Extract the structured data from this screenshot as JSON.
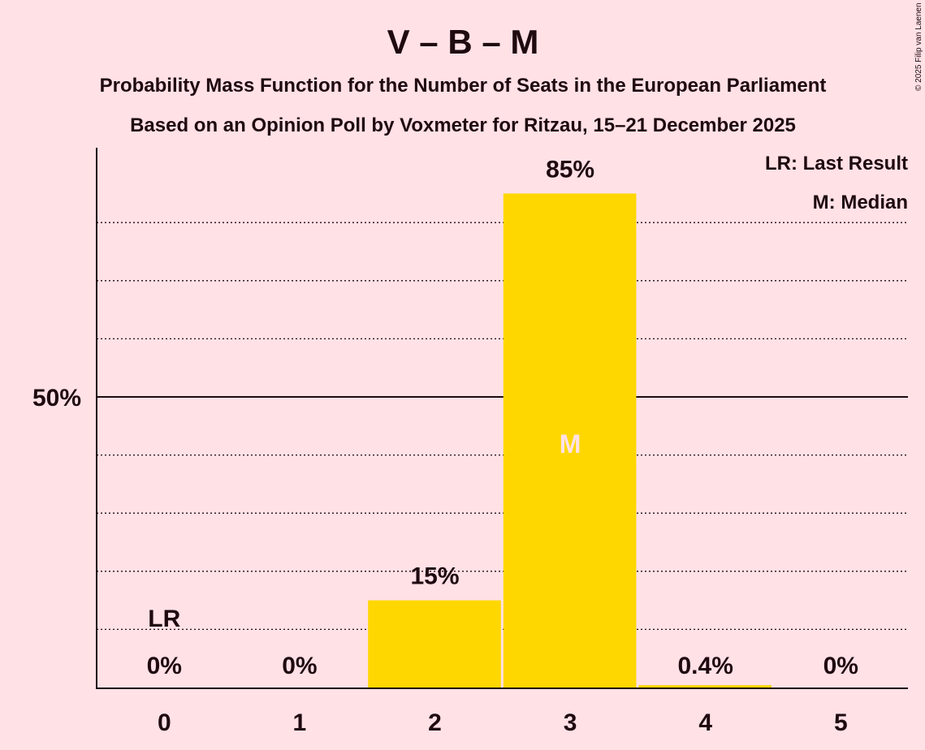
{
  "chart_data": {
    "type": "bar",
    "title": "V – B – M",
    "subtitle1": "Probability Mass Function for the Number of Seats in the European Parliament",
    "subtitle2": "Based on an Opinion Poll by Voxmeter for Ritzau, 15–21 December 2025",
    "copyright": "© 2025 Filip van Laenen",
    "categories": [
      "0",
      "1",
      "2",
      "3",
      "4",
      "5"
    ],
    "values": [
      0,
      0,
      15,
      85,
      0.4,
      0
    ],
    "labels": [
      "0%",
      "0%",
      "15%",
      "85%",
      "0.4%",
      "0%"
    ],
    "ytick_label": "50%",
    "ylim": [
      0,
      100
    ],
    "last_result_index": 0,
    "last_result_marker": "LR",
    "median_index": 3,
    "median_marker": "M",
    "legend": [
      "LR: Last Result",
      "M: Median"
    ],
    "bar_color": "#ffd700"
  }
}
